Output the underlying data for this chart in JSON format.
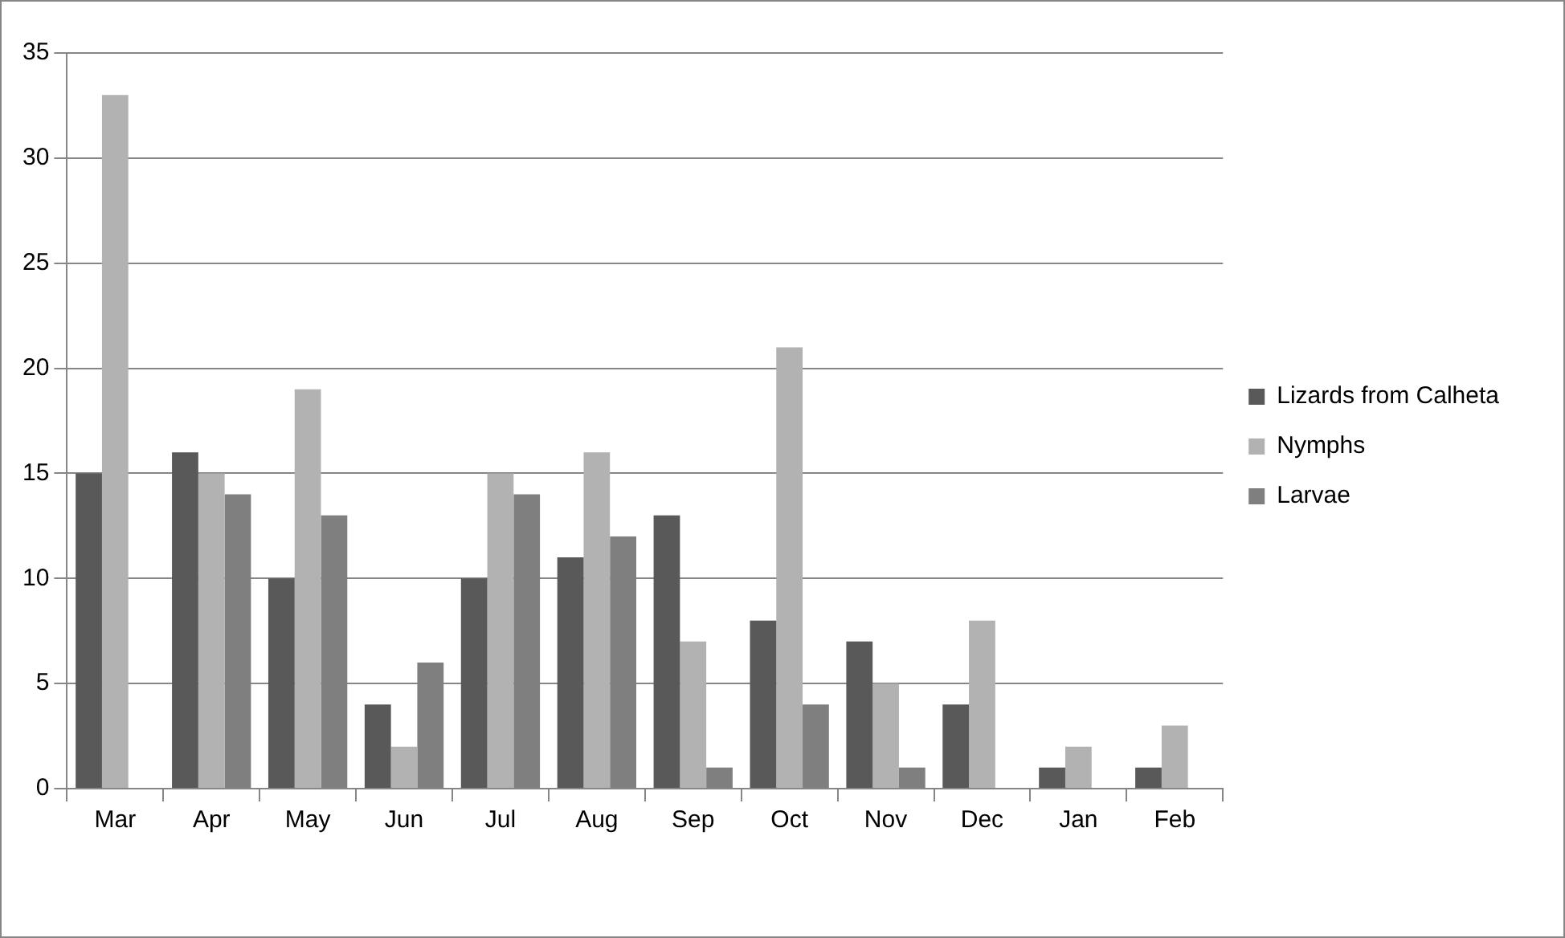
{
  "chart_data": {
    "type": "bar",
    "categories": [
      "Mar",
      "Apr",
      "May",
      "Jun",
      "Jul",
      "Aug",
      "Sep",
      "Oct",
      "Nov",
      "Dec",
      "Jan",
      "Feb"
    ],
    "series": [
      {
        "name": "Lizards from Calheta",
        "color": "#595959",
        "values": [
          15,
          16,
          10,
          4,
          10,
          11,
          13,
          8,
          7,
          4,
          1,
          1
        ]
      },
      {
        "name": "Nymphs",
        "color": "#b2b2b2",
        "values": [
          33,
          15,
          19,
          2,
          15,
          16,
          7,
          21,
          5,
          8,
          2,
          3
        ]
      },
      {
        "name": "Larvae",
        "color": "#7f7f7f",
        "values": [
          0,
          14,
          13,
          6,
          14,
          12,
          1,
          4,
          1,
          0,
          0,
          0
        ]
      }
    ],
    "ylim": [
      0,
      35
    ],
    "yticks": [
      0,
      5,
      10,
      15,
      20,
      25,
      30,
      35
    ],
    "grid": "y",
    "legend": "right"
  }
}
